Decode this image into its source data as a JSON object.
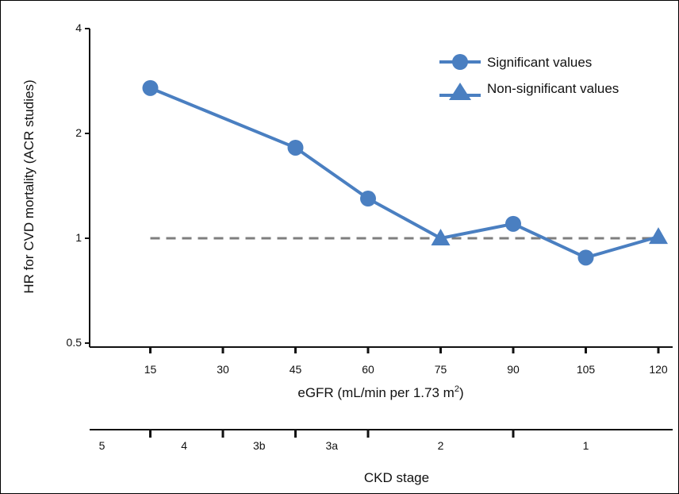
{
  "chart_data": {
    "type": "line",
    "title": "",
    "xlabel": "eGFR (mL/min per 1.73 m",
    "xlabel_superscript": "2",
    "xlabel_suffix": ")",
    "ylabel": "HR for CVD mortality (ACR studies)",
    "y_scale": "log",
    "xlim": [
      0,
      120
    ],
    "ylim": [
      0.5,
      4
    ],
    "x_ticks": [
      15,
      30,
      45,
      60,
      75,
      90,
      105,
      120
    ],
    "x_tick_labels": [
      "15",
      "30",
      "45",
      "60",
      "75",
      "90",
      "105",
      "120"
    ],
    "y_ticks": [
      0.5,
      1,
      2,
      4
    ],
    "y_tick_labels": [
      "0.5",
      "1",
      "2",
      "4"
    ],
    "grid": false,
    "legend_position": "top-right",
    "reference_line": {
      "y": 1,
      "style": "dashed",
      "color": "#7f7f7f"
    },
    "color": "#4a7fc1",
    "series": [
      {
        "x": [
          15,
          45,
          60,
          75,
          90,
          105,
          120
        ],
        "y": [
          2.7,
          1.82,
          1.3,
          1.0,
          1.1,
          0.88,
          1.01
        ],
        "significant": [
          true,
          true,
          true,
          false,
          true,
          true,
          false
        ]
      }
    ],
    "legend": [
      {
        "label": "Significant values",
        "marker": "circle"
      },
      {
        "label": "Non-significant values",
        "marker": "triangle"
      }
    ],
    "ckd": {
      "title": "CKD stage",
      "boundaries": [
        15,
        30,
        45,
        60,
        90
      ],
      "stages": [
        {
          "label": "5",
          "x": 5
        },
        {
          "label": "4",
          "x": 22
        },
        {
          "label": "3b",
          "x": 37.5
        },
        {
          "label": "3a",
          "x": 52.5
        },
        {
          "label": "2",
          "x": 75
        },
        {
          "label": "1",
          "x": 105
        }
      ]
    }
  }
}
